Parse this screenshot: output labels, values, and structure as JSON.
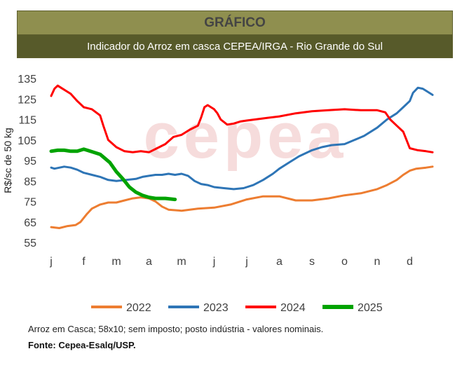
{
  "header": {
    "title": "GRÁFICO",
    "subtitle": "Indicador do Arroz em casca CEPEA/IRGA - Rio Grande do Sul"
  },
  "watermark": "cepea",
  "chart_data": {
    "type": "line",
    "ylabel": "R$/sc de 50 kg",
    "xlabel": "",
    "ylim": [
      55,
      135
    ],
    "yticks": [
      55,
      65,
      75,
      85,
      95,
      105,
      115,
      125,
      135
    ],
    "categories": [
      "j",
      "f",
      "m",
      "a",
      "m",
      "j",
      "j",
      "a",
      "s",
      "o",
      "n",
      "d"
    ],
    "grid": false,
    "legend_position": "bottom",
    "series": [
      {
        "name": "2022",
        "color": "#ed7d31",
        "stroke": 3,
        "x": [
          0,
          0.25,
          0.5,
          0.75,
          0.9,
          1.0,
          1.1,
          1.25,
          1.5,
          1.75,
          2.0,
          2.25,
          2.5,
          2.75,
          3.0,
          3.2,
          3.4,
          3.6,
          4.0,
          4.5,
          5.0,
          5.5,
          6.0,
          6.5,
          7.0,
          7.5,
          8.0,
          8.5,
          9.0,
          9.5,
          10.0,
          10.3,
          10.6,
          10.8,
          11.0,
          11.2,
          11.5,
          11.7
        ],
        "y": [
          62.5,
          62,
          63,
          63.5,
          65,
          67,
          69,
          71.5,
          73.5,
          74.5,
          74.5,
          75.5,
          76.5,
          77,
          76.5,
          75,
          72.5,
          71,
          70.5,
          71.5,
          72,
          73.5,
          76,
          77.5,
          77.5,
          75.5,
          75.5,
          76.5,
          78,
          79,
          81,
          83,
          85.5,
          88,
          90,
          91,
          91.5,
          92
        ]
      },
      {
        "name": "2023",
        "color": "#2e75b6",
        "stroke": 3,
        "x": [
          0,
          0.1,
          0.4,
          0.6,
          0.8,
          1.0,
          1.25,
          1.5,
          1.75,
          2.0,
          2.3,
          2.6,
          2.8,
          3.0,
          3.2,
          3.4,
          3.6,
          3.8,
          4.0,
          4.2,
          4.4,
          4.6,
          4.8,
          5.0,
          5.3,
          5.6,
          5.9,
          6.2,
          6.5,
          6.8,
          7.0,
          7.3,
          7.6,
          8.0,
          8.3,
          8.6,
          9.0,
          9.3,
          9.6,
          10.0,
          10.3,
          10.6,
          10.8,
          11.0,
          11.1,
          11.25,
          11.4,
          11.55,
          11.7
        ],
        "y": [
          91.5,
          91,
          92,
          91.5,
          90.5,
          89,
          88,
          87,
          85.5,
          85,
          85.5,
          86,
          87,
          87.5,
          88,
          88,
          88.5,
          88,
          88.5,
          87.5,
          85,
          83.5,
          83,
          82,
          81.5,
          81,
          81.5,
          83,
          85.5,
          88.5,
          91,
          94,
          97,
          100,
          101.5,
          102.5,
          103,
          105,
          107,
          111,
          115,
          118,
          121,
          124,
          128,
          130.5,
          130,
          128.5,
          127
        ]
      },
      {
        "name": "2024",
        "color": "#ff0000",
        "stroke": 3,
        "x": [
          0,
          0.1,
          0.2,
          0.3,
          0.45,
          0.6,
          0.8,
          1.0,
          1.25,
          1.5,
          1.6,
          1.75,
          2.0,
          2.25,
          2.5,
          2.75,
          3.0,
          3.25,
          3.5,
          3.75,
          4.0,
          4.25,
          4.5,
          4.6,
          4.7,
          4.8,
          5.0,
          5.1,
          5.2,
          5.4,
          5.6,
          5.8,
          6.0,
          6.5,
          7.0,
          7.5,
          8.0,
          8.5,
          9.0,
          9.5,
          10.0,
          10.25,
          10.4,
          10.6,
          10.8,
          10.9,
          11.0,
          11.25,
          11.5,
          11.7
        ],
        "y": [
          126.5,
          130,
          131.5,
          130.5,
          129,
          127.5,
          124,
          121,
          120,
          117,
          112,
          105,
          101.5,
          99.5,
          99,
          99.5,
          99,
          101,
          103,
          106.5,
          107.5,
          110,
          112,
          116,
          121,
          122,
          120,
          118,
          115,
          112.5,
          113,
          114,
          114.5,
          115.5,
          116.5,
          118,
          119,
          119.5,
          120,
          119.5,
          119.5,
          118.5,
          115,
          112,
          109,
          105,
          101,
          100,
          99.5,
          99
        ]
      },
      {
        "name": "2025",
        "color": "#00a300",
        "stroke": 5,
        "x": [
          0,
          0.2,
          0.4,
          0.6,
          0.8,
          1.0,
          1.2,
          1.5,
          1.8,
          2.0,
          2.2,
          2.4,
          2.6,
          2.8,
          3.0,
          3.2,
          3.5,
          3.8
        ],
        "y": [
          99.5,
          100,
          100,
          99.5,
          99.5,
          100.5,
          99.5,
          98,
          94,
          89.5,
          86,
          82,
          79.5,
          78,
          77,
          76.5,
          76.5,
          76
        ]
      }
    ]
  },
  "footer": {
    "note": "Arroz em Casca; 58x10; sem imposto; posto indústria  - valores nominais.",
    "source": "Fonte: Cepea-Esalq/USP."
  }
}
